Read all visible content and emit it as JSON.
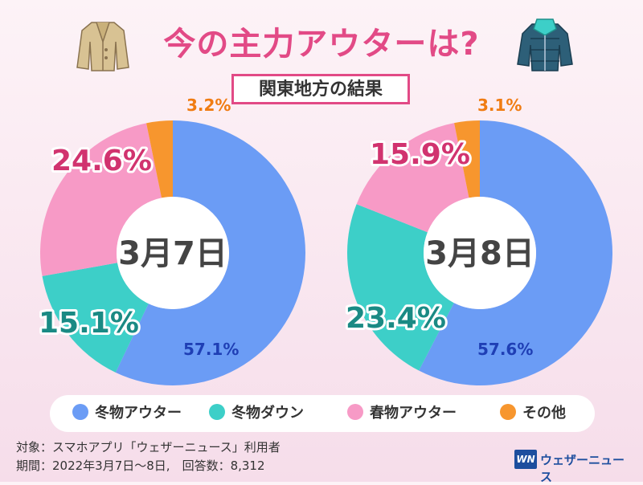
{
  "title": "今の主力アウターは?",
  "subtitle": "関東地方の結果",
  "colors": {
    "winter_outer": "#6b9cf5",
    "winter_down": "#3dcfc8",
    "spring_outer": "#f79ac6",
    "other": "#f7962e",
    "accent": "#e24a86"
  },
  "legend": [
    {
      "label": "冬物アウター",
      "color": "#6b9cf5"
    },
    {
      "label": "冬物ダウン",
      "color": "#3dcfc8"
    },
    {
      "label": "春物アウター",
      "color": "#f79ac6"
    },
    {
      "label": "その他",
      "color": "#f7962e"
    }
  ],
  "chart_data": [
    {
      "type": "pie",
      "title": "3月7日",
      "categories": [
        "冬物アウター",
        "冬物ダウン",
        "春物アウター",
        "その他"
      ],
      "values": [
        57.1,
        15.1,
        24.6,
        3.2
      ],
      "labels": [
        "57.1%",
        "15.1%",
        "24.6%",
        "3.2%"
      ]
    },
    {
      "type": "pie",
      "title": "3月8日",
      "categories": [
        "冬物アウター",
        "冬物ダウン",
        "春物アウター",
        "その他"
      ],
      "values": [
        57.6,
        23.4,
        15.9,
        3.1
      ],
      "labels": [
        "57.6%",
        "23.4%",
        "15.9%",
        "3.1%"
      ]
    }
  ],
  "footnote": {
    "subject": "対象：スマホアプリ「ウェザーニュース」利用者",
    "period": "期間：2022年3月7日～8日,　回答数：8,312"
  },
  "logo": {
    "mark": "WN",
    "text": "ウェザーニュース"
  }
}
